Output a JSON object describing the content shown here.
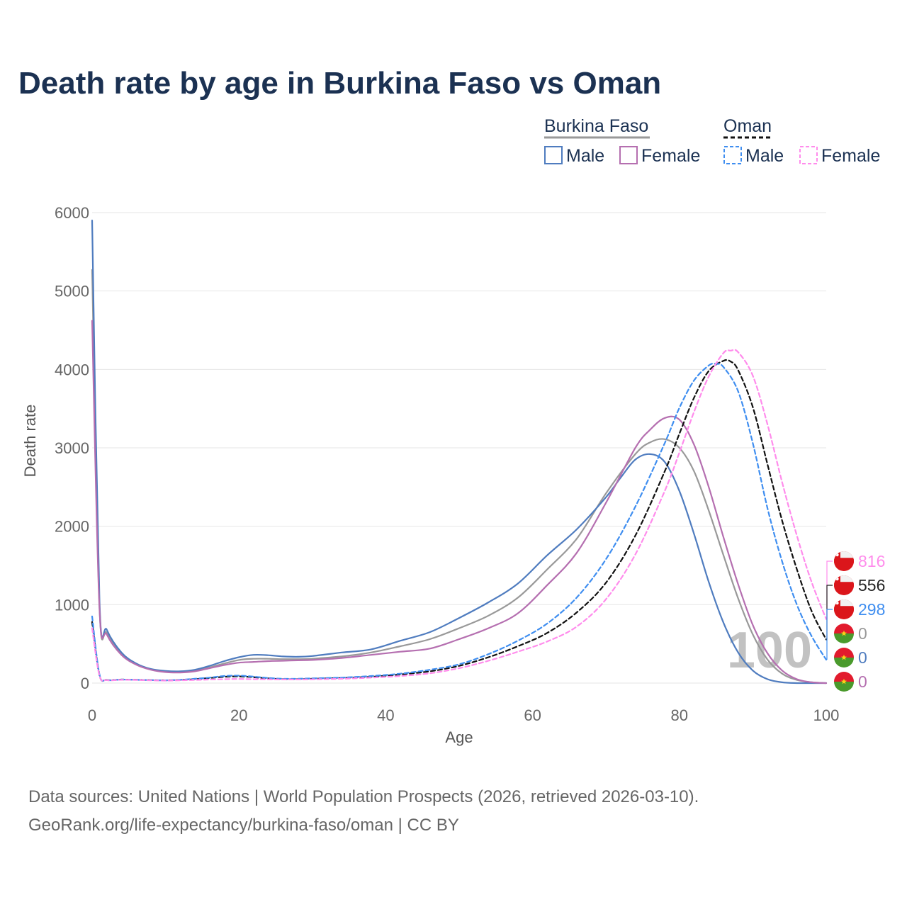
{
  "title": "Death rate by age in Burkina Faso vs Oman",
  "legend": {
    "groups": [
      {
        "name": "Burkina Faso",
        "line_color": "#999999",
        "line_style": "solid"
      },
      {
        "name": "Oman",
        "line_color": "#111111",
        "line_style": "dashed"
      }
    ],
    "items": [
      {
        "label": "Male",
        "color": "#4f7cbf",
        "style": "solid"
      },
      {
        "label": "Female",
        "color": "#b56fb0",
        "style": "solid"
      },
      {
        "label": "Male",
        "color": "#3f8ef0",
        "style": "dashed"
      },
      {
        "label": "Female",
        "color": "#ff8cec",
        "style": "dashed"
      }
    ]
  },
  "highlight_age": "100",
  "sources": [
    "Data sources: United Nations | World Population Prospects (2026, retrieved 2026-03-10).",
    "GeoRank.org/life-expectancy/burkina-faso/oman | CC BY"
  ],
  "end_labels": [
    {
      "text": "816",
      "color": "#ff8cec",
      "flag": "oman-flag"
    },
    {
      "text": "556",
      "color": "#222222",
      "flag": "oman-flag"
    },
    {
      "text": "298",
      "color": "#3f8ef0",
      "flag": "oman-flag"
    },
    {
      "text": "0",
      "color": "#999999",
      "flag": "burkina-faso-flag"
    },
    {
      "text": "0",
      "color": "#4f7cbf",
      "flag": "burkina-faso-flag"
    },
    {
      "text": "0",
      "color": "#b56fb0",
      "flag": "burkina-faso-flag"
    }
  ],
  "chart_data": {
    "type": "line",
    "title": "Death rate by age in Burkina Faso vs Oman",
    "xlabel": "Age",
    "ylabel": "Death rate",
    "xlim": [
      0,
      100
    ],
    "ylim": [
      0,
      6000
    ],
    "xticks": [
      0,
      20,
      40,
      60,
      80,
      100
    ],
    "yticks": [
      0,
      1000,
      2000,
      3000,
      4000,
      5000,
      6000
    ],
    "grid": true,
    "series": [
      {
        "name": "Burkina Faso Total",
        "color": "#999999",
        "dash": false,
        "x": [
          0,
          1,
          2,
          4,
          6,
          8,
          10,
          12,
          14,
          16,
          18,
          20,
          22,
          24,
          26,
          28,
          30,
          34,
          38,
          42,
          46,
          50,
          54,
          58,
          62,
          66,
          70,
          74,
          76,
          78,
          80,
          82,
          84,
          86,
          88,
          90,
          92,
          94,
          96,
          98,
          100
        ],
        "values": [
          5270,
          980,
          640,
          370,
          240,
          175,
          145,
          140,
          160,
          200,
          250,
          295,
          310,
          310,
          305,
          305,
          310,
          340,
          390,
          470,
          560,
          700,
          860,
          1090,
          1450,
          1840,
          2420,
          2920,
          3070,
          3110,
          3000,
          2700,
          2200,
          1630,
          1080,
          620,
          300,
          120,
          40,
          10,
          0
        ]
      },
      {
        "name": "Burkina Faso Male",
        "color": "#4f7cbf",
        "dash": false,
        "x": [
          0,
          1,
          2,
          4,
          6,
          8,
          10,
          12,
          14,
          16,
          18,
          20,
          22,
          24,
          26,
          28,
          30,
          34,
          38,
          42,
          46,
          50,
          54,
          58,
          62,
          66,
          70,
          72,
          74,
          76,
          78,
          80,
          82,
          84,
          86,
          88,
          90,
          92,
          94,
          96,
          98,
          100
        ],
        "values": [
          5900,
          1050,
          680,
          390,
          250,
          180,
          155,
          150,
          170,
          220,
          280,
          330,
          360,
          355,
          340,
          335,
          345,
          390,
          430,
          540,
          650,
          830,
          1030,
          1270,
          1630,
          1960,
          2370,
          2620,
          2850,
          2920,
          2820,
          2450,
          1900,
          1290,
          770,
          390,
          160,
          50,
          10,
          0,
          0,
          0
        ]
      },
      {
        "name": "Burkina Faso Female",
        "color": "#b56fb0",
        "dash": false,
        "x": [
          0,
          1,
          2,
          4,
          6,
          8,
          10,
          12,
          14,
          16,
          18,
          20,
          22,
          24,
          26,
          28,
          30,
          34,
          38,
          42,
          46,
          50,
          54,
          58,
          62,
          66,
          70,
          74,
          76,
          78,
          80,
          82,
          84,
          86,
          88,
          90,
          92,
          94,
          96,
          98,
          100
        ],
        "values": [
          4620,
          950,
          620,
          360,
          235,
          170,
          140,
          135,
          150,
          190,
          230,
          260,
          270,
          280,
          285,
          290,
          295,
          320,
          360,
          400,
          440,
          560,
          700,
          890,
          1250,
          1660,
          2300,
          3000,
          3230,
          3380,
          3360,
          3040,
          2500,
          1860,
          1260,
          740,
          380,
          160,
          50,
          10,
          0
        ]
      },
      {
        "name": "Oman Total",
        "color": "#111111",
        "dash": true,
        "x": [
          0,
          1,
          2,
          4,
          6,
          8,
          10,
          12,
          14,
          16,
          18,
          20,
          22,
          24,
          26,
          28,
          30,
          34,
          38,
          42,
          46,
          50,
          54,
          58,
          62,
          66,
          70,
          74,
          78,
          80,
          82,
          84,
          86,
          87,
          88,
          90,
          92,
          94,
          96,
          98,
          100
        ],
        "values": [
          780,
          100,
          40,
          45,
          42,
          38,
          35,
          40,
          50,
          65,
          80,
          85,
          75,
          60,
          50,
          50,
          55,
          65,
          80,
          110,
          150,
          220,
          330,
          470,
          640,
          900,
          1280,
          1880,
          2700,
          3180,
          3640,
          3980,
          4110,
          4100,
          3990,
          3520,
          2790,
          2070,
          1450,
          920,
          556
        ]
      },
      {
        "name": "Oman Male",
        "color": "#3f8ef0",
        "dash": true,
        "x": [
          0,
          1,
          2,
          4,
          6,
          8,
          10,
          12,
          14,
          16,
          18,
          20,
          22,
          24,
          26,
          28,
          30,
          34,
          38,
          42,
          46,
          50,
          54,
          58,
          62,
          66,
          70,
          74,
          78,
          80,
          82,
          84,
          85,
          86,
          88,
          90,
          92,
          94,
          96,
          98,
          100
        ],
        "values": [
          850,
          110,
          40,
          45,
          42,
          38,
          35,
          42,
          55,
          70,
          90,
          95,
          82,
          65,
          55,
          55,
          60,
          70,
          90,
          120,
          170,
          240,
          370,
          540,
          760,
          1090,
          1580,
          2250,
          3060,
          3510,
          3860,
          4050,
          4070,
          4030,
          3720,
          3060,
          2230,
          1550,
          1000,
          600,
          298
        ]
      },
      {
        "name": "Oman Female",
        "color": "#ff8cec",
        "dash": true,
        "x": [
          0,
          1,
          2,
          4,
          6,
          8,
          10,
          12,
          14,
          16,
          18,
          20,
          22,
          24,
          26,
          28,
          30,
          34,
          38,
          42,
          46,
          50,
          54,
          58,
          62,
          66,
          70,
          74,
          78,
          80,
          82,
          84,
          86,
          87,
          88,
          90,
          92,
          94,
          96,
          98,
          100
        ],
        "values": [
          700,
          95,
          38,
          42,
          40,
          35,
          32,
          35,
          40,
          45,
          50,
          52,
          50,
          48,
          46,
          46,
          48,
          55,
          70,
          90,
          125,
          190,
          285,
          400,
          530,
          720,
          1070,
          1640,
          2450,
          2940,
          3460,
          3910,
          4210,
          4240,
          4220,
          3920,
          3300,
          2560,
          1880,
          1290,
          816
        ]
      }
    ]
  }
}
